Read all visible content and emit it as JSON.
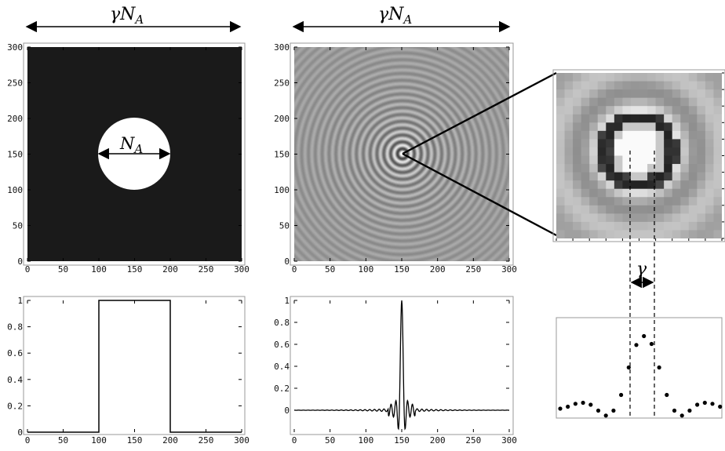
{
  "labels": {
    "width_label_main": "γN",
    "width_label_sub": "A",
    "aperture_label_main": "N",
    "aperture_label_sub": "A",
    "gamma_label": "γ"
  },
  "colors": {
    "background": "#ffffff",
    "aperture_dark": "#1a1a1a",
    "aperture_light": "#ffffff",
    "ink": "#000000"
  },
  "chart_data": [
    {
      "id": "aperture-image",
      "type": "heatmap",
      "description_of_content": "binary disk",
      "disk_center": [
        150,
        150
      ],
      "disk_diameter": 100,
      "xlim": [
        0,
        300
      ],
      "ylim": [
        0,
        300
      ],
      "x_ticks": [
        "0",
        "50",
        "100",
        "150",
        "200",
        "250",
        "300"
      ],
      "y_ticks": [
        "0",
        "50",
        "100",
        "150",
        "200",
        "250",
        "300"
      ]
    },
    {
      "id": "diffraction-image",
      "type": "heatmap",
      "center": [
        150,
        150
      ],
      "xlim": [
        0,
        300
      ],
      "ylim": [
        0,
        300
      ],
      "x_ticks": [
        "0",
        "50",
        "100",
        "150",
        "200",
        "250",
        "300"
      ],
      "y_ticks": [
        "0",
        "50",
        "100",
        "150",
        "200",
        "250",
        "300"
      ]
    },
    {
      "id": "aperture-profile",
      "type": "line",
      "x": [
        0,
        100,
        100,
        200,
        200,
        300
      ],
      "y": [
        0,
        0,
        1,
        1,
        0,
        0
      ],
      "xlim": [
        0,
        300
      ],
      "ylim": [
        0,
        1
      ],
      "x_ticks": [
        "0",
        "50",
        "100",
        "150",
        "200",
        "250",
        "300"
      ],
      "y_ticks": [
        "0",
        "0.2",
        "0.4",
        "0.6",
        "0.8",
        "1"
      ]
    },
    {
      "id": "diffraction-profile",
      "type": "line",
      "center": 150,
      "peak": 1,
      "first_minimum": -0.2,
      "xlim": [
        0,
        300
      ],
      "ylim": [
        -0.2,
        1
      ],
      "x_ticks": [
        "0",
        "50",
        "100",
        "150",
        "200",
        "250",
        "300"
      ],
      "y_ticks": [
        "0",
        "0.2",
        "0.4",
        "0.6",
        "0.8",
        "1"
      ]
    },
    {
      "id": "sampled-profile",
      "type": "scatter",
      "y": [
        0.08,
        0.1,
        0.13,
        0.14,
        0.12,
        0.06,
        0.01,
        0.06,
        0.22,
        0.5,
        0.73,
        0.82,
        0.74,
        0.5,
        0.22,
        0.06,
        0.01,
        0.06,
        0.12,
        0.14,
        0.13,
        0.1,
        0.08
      ]
    }
  ]
}
